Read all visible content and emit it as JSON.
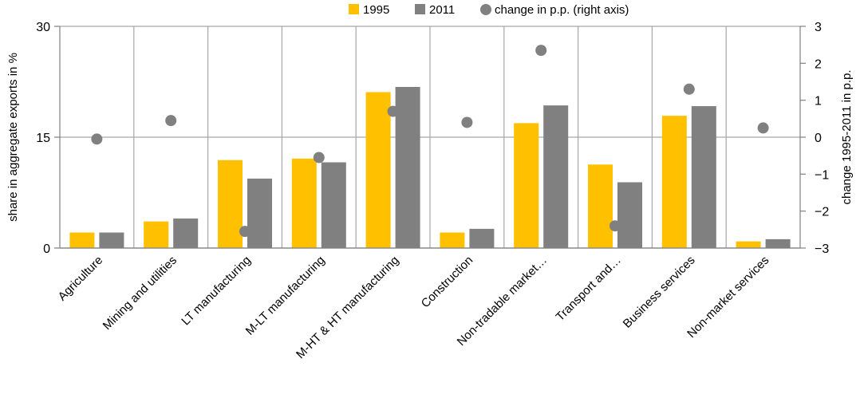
{
  "chart_data": {
    "type": "bar",
    "categories": [
      "Agriculture",
      "Mining and utilities",
      "LT manufacturing",
      "M-LT manufacturing",
      "M-HT & HT manufacturing",
      "Construction",
      "Non-tradable market…",
      "Transport and…",
      "Business services",
      "Non-market services"
    ],
    "series": [
      {
        "name": "1995",
        "axis": "left",
        "color": "#FFC000",
        "values": [
          2.1,
          3.6,
          11.9,
          12.1,
          21.1,
          2.1,
          16.9,
          11.3,
          17.9,
          0.9
        ]
      },
      {
        "name": "2011",
        "axis": "left",
        "color": "#808080",
        "values": [
          2.1,
          4.0,
          9.4,
          11.6,
          21.8,
          2.6,
          19.3,
          8.9,
          19.2,
          1.2
        ]
      },
      {
        "name": "change in p.p. (right axis)",
        "axis": "right",
        "color": "#808080",
        "marker": "circle",
        "values": [
          -0.05,
          0.45,
          -2.55,
          -0.55,
          0.7,
          0.4,
          2.35,
          -2.4,
          1.3,
          0.25
        ]
      }
    ],
    "ylabel": "share in aggregate exports in %",
    "y2label": "change 1995-2011 in p.p.",
    "ylim": [
      0,
      30
    ],
    "yticks": [
      "0",
      "15",
      "30"
    ],
    "y2lim": [
      -3,
      3
    ],
    "y2ticks": [
      "-3",
      "-2",
      "-1",
      "0",
      "1",
      "2",
      "3"
    ],
    "grid": true,
    "legend": "top-right"
  }
}
